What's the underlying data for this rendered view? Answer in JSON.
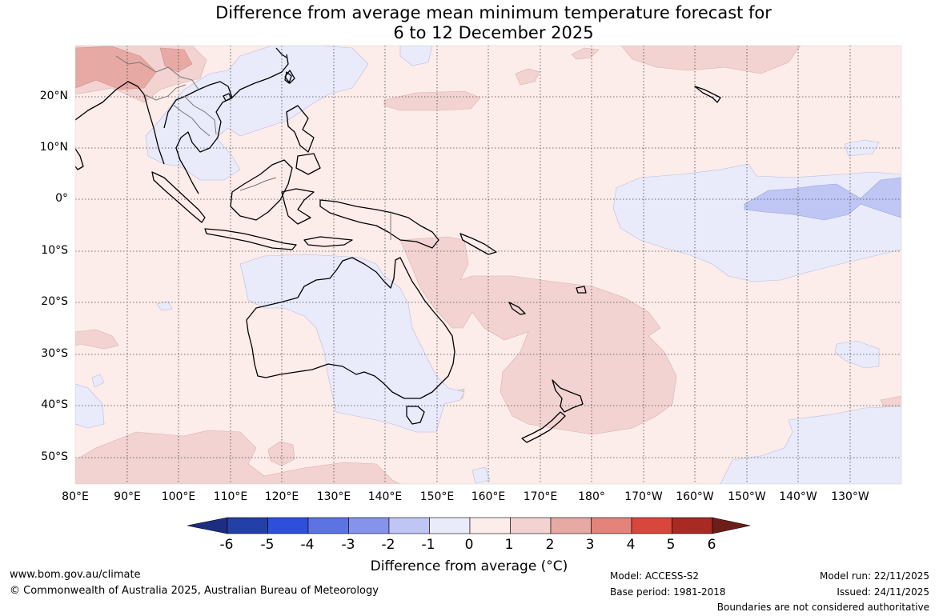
{
  "title_line1": "Difference from average mean minimum temperature forecast for",
  "title_line2": "6 to 12 December 2025",
  "lat_labels": [
    "20°N",
    "10°N",
    "0°",
    "10°S",
    "20°S",
    "30°S",
    "40°S",
    "50°S"
  ],
  "lon_labels": [
    "80°E",
    "90°E",
    "100°E",
    "110°E",
    "120°E",
    "130°E",
    "140°E",
    "150°E",
    "160°E",
    "170°E",
    "180°",
    "170°W",
    "160°W",
    "150°W",
    "140°W",
    "130°W"
  ],
  "colorbar": {
    "ticks": [
      "-6",
      "-5",
      "-4",
      "-3",
      "-2",
      "-1",
      "0",
      "1",
      "2",
      "3",
      "4",
      "5",
      "6"
    ],
    "colors": [
      "#1c2e82",
      "#233fa8",
      "#2e4fd9",
      "#5c73e3",
      "#8593ea",
      "#c0c6f3",
      "#e9ebfb",
      "#fcecea",
      "#f2d3d1",
      "#e6a9a4",
      "#e38379",
      "#d8473c",
      "#a82a23",
      "#6e1e19"
    ],
    "label": "Difference from average (°C)"
  },
  "footer": {
    "website": "www.bom.gov.au/climate",
    "copyright": "© Commonwealth of Australia 2025, Australian Bureau of Meteorology",
    "model": "Model: ACCESS-S2",
    "base_period": "Base period: 1981-2018",
    "model_run": "Model run: 22/11/2025",
    "issued": "Issued: 24/11/2025",
    "disclaimer": "Boundaries are not considered authoritative"
  }
}
